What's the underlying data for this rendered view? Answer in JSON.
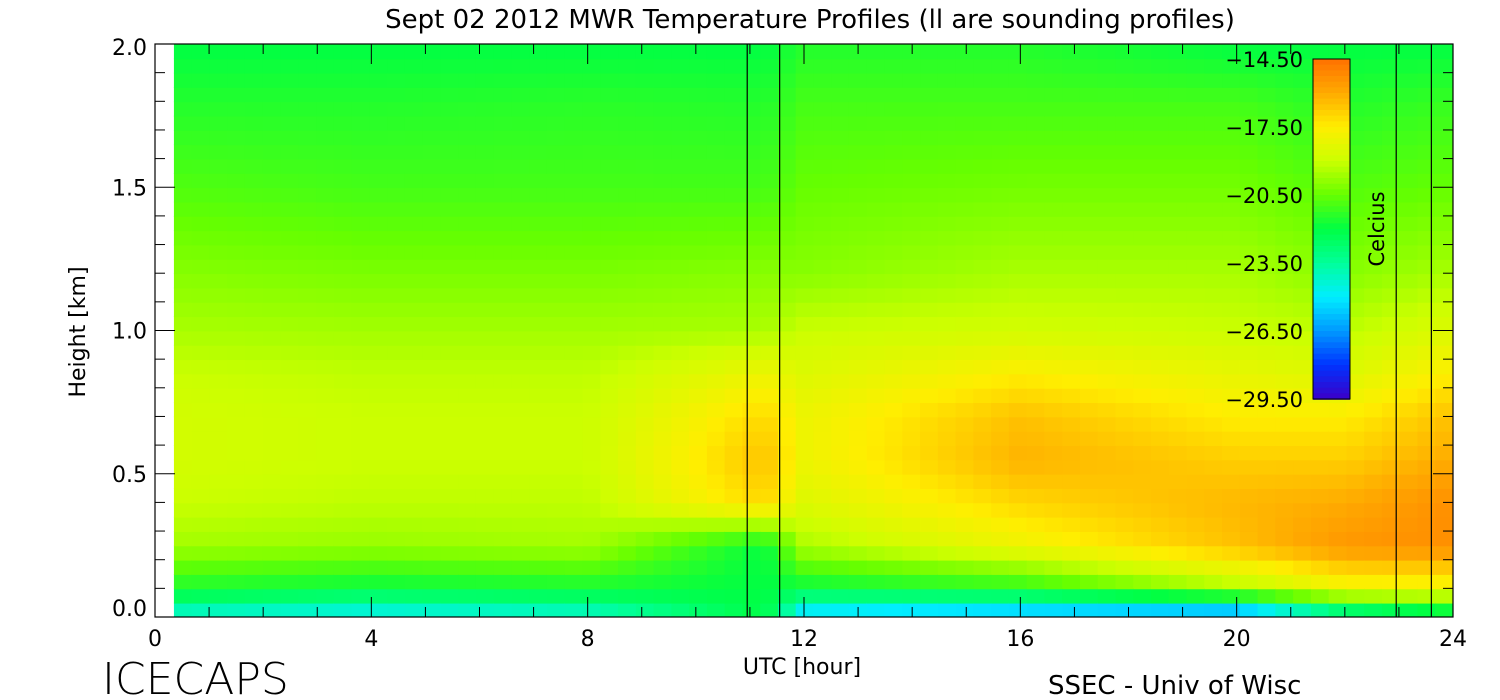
{
  "chart_data": {
    "type": "heatmap",
    "title": "Sept 02 2012 MWR Temperature Profiles (ll are sounding profiles)",
    "xlabel": "UTC [hour]",
    "ylabel": "Height [km]",
    "xlim": [
      0,
      24
    ],
    "ylim": [
      0,
      2
    ],
    "x_ticks": [
      "0",
      "4",
      "8",
      "12",
      "16",
      "20",
      "24"
    ],
    "y_ticks": [
      "0.0",
      "0.5",
      "1.0",
      "1.5",
      "2.0"
    ],
    "data_x_range": [
      0.35,
      24
    ],
    "colorbar": {
      "label": "Celcius",
      "min": -29.5,
      "max": -14.5,
      "ticks": [
        "-14.50",
        "-17.50",
        "-20.50",
        "-23.50",
        "-26.50",
        "-29.50"
      ]
    },
    "sounding_profiles": [
      {
        "x_start": 10.95,
        "x_end": 11.55
      },
      {
        "x_start": 22.95,
        "x_end": 23.6
      }
    ],
    "temperature_samples": {
      "heights_km": [
        0.02,
        0.1,
        0.25,
        0.4,
        0.55,
        0.7,
        0.85,
        1.0,
        1.2,
        1.5,
        1.8,
        2.0
      ],
      "profiles": [
        {
          "utc": 0,
          "celsius": [
            -24.0,
            -21.6,
            -19.6,
            -19.0,
            -18.8,
            -18.8,
            -19.0,
            -19.5,
            -20.0,
            -20.8,
            -21.5,
            -22.0
          ]
        },
        {
          "utc": 4,
          "celsius": [
            -24.5,
            -22.0,
            -19.8,
            -19.2,
            -19.0,
            -19.0,
            -19.2,
            -19.6,
            -20.2,
            -21.0,
            -21.5,
            -22.0
          ]
        },
        {
          "utc": 8,
          "celsius": [
            -24.0,
            -21.8,
            -19.6,
            -19.2,
            -19.0,
            -19.0,
            -19.2,
            -19.6,
            -20.2,
            -21.0,
            -21.4,
            -22.0
          ]
        },
        {
          "utc": 11.25,
          "celsius": [
            -22.0,
            -22.0,
            -22.0,
            -17.0,
            -16.5,
            -17.0,
            -18.0,
            -19.5,
            -20.0,
            -21.0,
            -21.5,
            -22.0
          ]
        },
        {
          "utc": 12,
          "celsius": [
            -25.0,
            -22.0,
            -19.5,
            -18.5,
            -18.0,
            -18.0,
            -18.5,
            -19.0,
            -20.0,
            -20.5,
            -21.0,
            -21.5
          ]
        },
        {
          "utc": 16,
          "celsius": [
            -25.5,
            -21.5,
            -18.0,
            -17.0,
            -16.2,
            -16.5,
            -17.5,
            -18.8,
            -19.5,
            -20.3,
            -21.0,
            -21.5
          ]
        },
        {
          "utc": 20,
          "celsius": [
            -26.0,
            -19.5,
            -16.5,
            -16.3,
            -16.8,
            -17.5,
            -18.2,
            -19.0,
            -19.5,
            -20.3,
            -21.0,
            -22.0
          ]
        },
        {
          "utc": 22,
          "celsius": [
            -23.0,
            -18.0,
            -15.5,
            -16.0,
            -16.8,
            -17.5,
            -18.5,
            -19.2,
            -20.0,
            -20.8,
            -21.5,
            -22.0
          ]
        },
        {
          "utc": 24,
          "celsius": [
            -22.0,
            -18.0,
            -15.3,
            -15.3,
            -16.0,
            -16.5,
            -17.5,
            -18.5,
            -19.5,
            -20.5,
            -21.2,
            -22.0
          ]
        }
      ]
    }
  },
  "brand": "ICECAPS",
  "credit": "SSEC - Univ of Wisc",
  "colors": {
    "colormap": [
      "#3b00c8",
      "#0033ff",
      "#0099ff",
      "#00eeff",
      "#00ff99",
      "#00ff44",
      "#66ff00",
      "#ccff00",
      "#ffee00",
      "#ffaa00",
      "#ff7000"
    ]
  }
}
